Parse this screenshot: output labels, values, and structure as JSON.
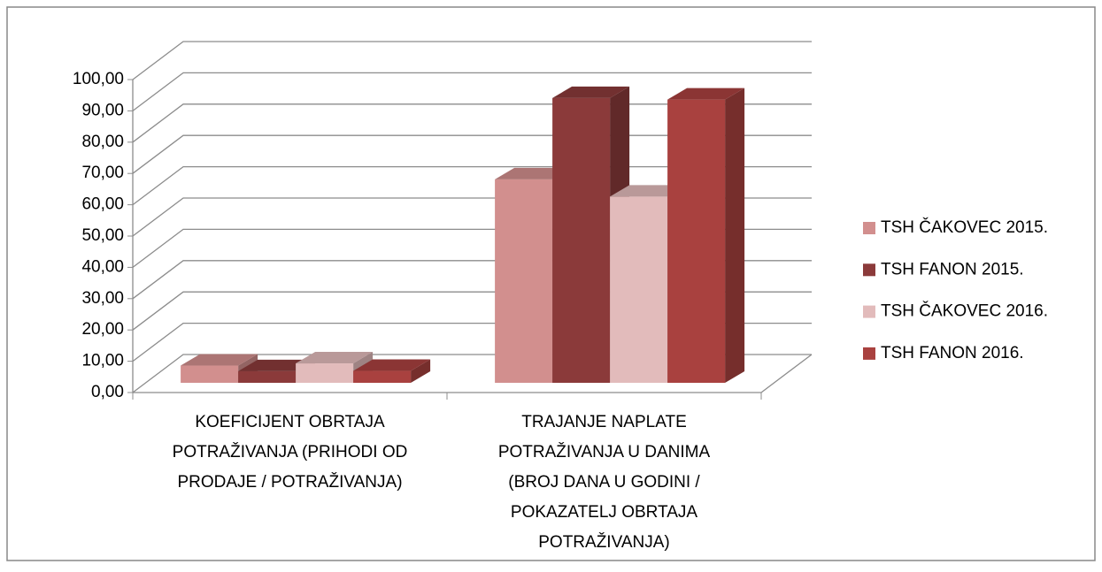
{
  "chart_data": {
    "type": "bar3d",
    "categories": [
      [
        "KOEFICIJENT OBRTAJA",
        "POTRAŽIVANJA (PRIHODI OD",
        "PRODAJE / POTRAŽIVANJA)"
      ],
      [
        "TRAJANJE NAPLATE",
        "POTRAŽIVANJA U DANIMA",
        "(BROJ DANA U GODINI /",
        "POKAZATELJ OBRTAJA",
        "POTRAŽIVANJA)"
      ]
    ],
    "series": [
      {
        "name": "TSH ČAKOVEC 2015.",
        "color": "#d28f8e",
        "values": [
          5.5,
          65
        ]
      },
      {
        "name": "TSH FANON 2015.",
        "color": "#8b3a3a",
        "values": [
          3.7,
          91
        ]
      },
      {
        "name": "TSH ČAKOVEC 2016.",
        "color": "#e2bbbb",
        "values": [
          6.2,
          59.5
        ]
      },
      {
        "name": "TSH FANON 2016.",
        "color": "#a9413f",
        "values": [
          3.8,
          90.5
        ]
      }
    ],
    "ylim": [
      0,
      100
    ],
    "yticks": [
      {
        "value": 0,
        "label": "0,00"
      },
      {
        "value": 10,
        "label": "10,00"
      },
      {
        "value": 20,
        "label": "20,00"
      },
      {
        "value": 30,
        "label": "30,00"
      },
      {
        "value": 40,
        "label": "40,00"
      },
      {
        "value": 50,
        "label": "50,00"
      },
      {
        "value": 60,
        "label": "60,00"
      },
      {
        "value": 70,
        "label": "70,00"
      },
      {
        "value": 80,
        "label": "80,00"
      },
      {
        "value": 90,
        "label": "90,00"
      },
      {
        "value": 100,
        "label": "100,00"
      }
    ],
    "grid": true,
    "legend": "right"
  }
}
